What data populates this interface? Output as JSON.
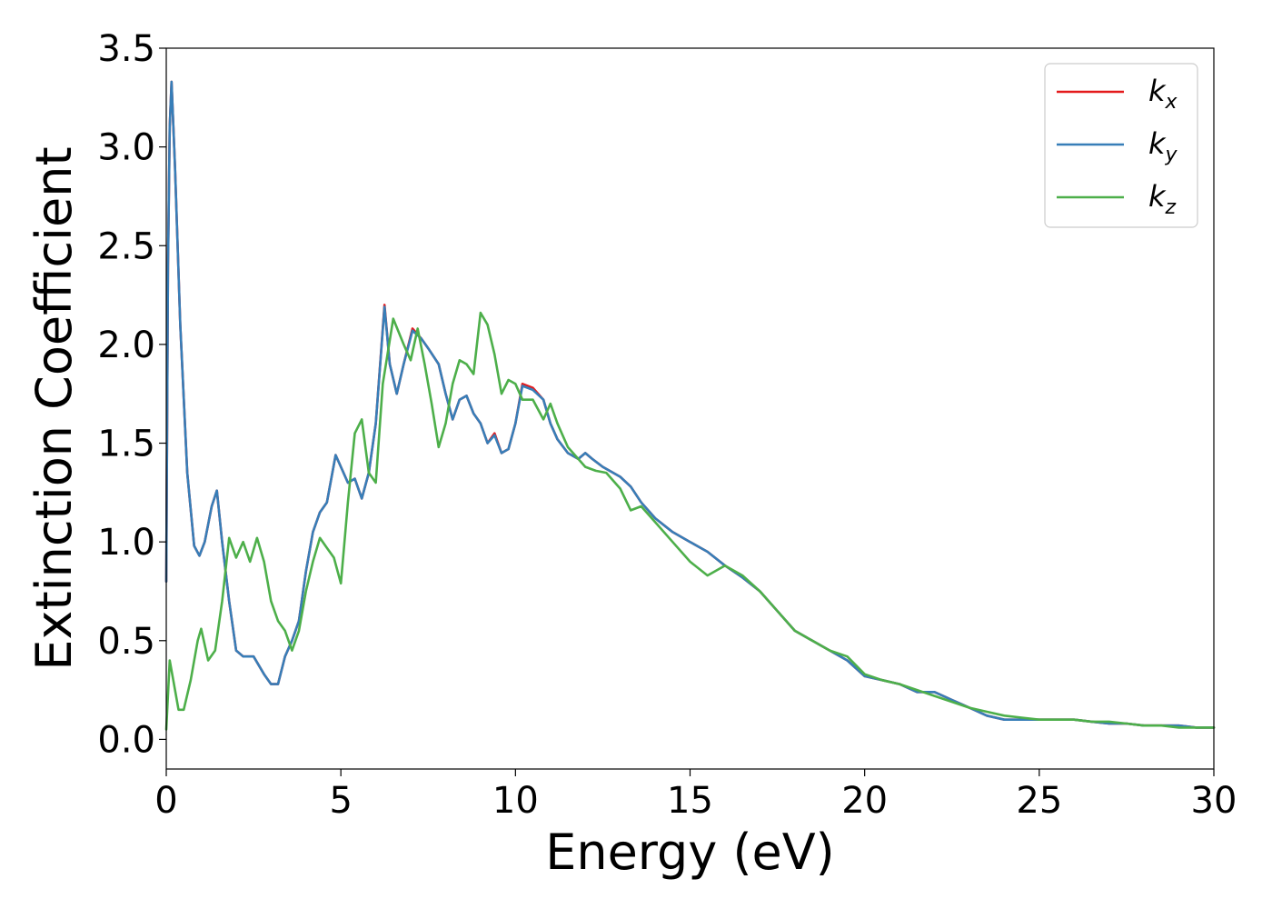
{
  "chart_data": {
    "type": "line",
    "xlabel": "Energy (eV)",
    "ylabel": "Extinction Coefficient",
    "xlim": [
      0,
      30
    ],
    "ylim": [
      -0.15,
      3.5
    ],
    "xticks": [
      0,
      5,
      10,
      15,
      20,
      25,
      30
    ],
    "xtick_labels": [
      "0",
      "5",
      "10",
      "15",
      "20",
      "25",
      "30"
    ],
    "yticks": [
      0.0,
      0.5,
      1.0,
      1.5,
      2.0,
      2.5,
      3.0,
      3.5
    ],
    "ytick_labels": [
      "0.0",
      "0.5",
      "1.0",
      "1.5",
      "2.0",
      "2.5",
      "3.0",
      "3.5"
    ],
    "grid": false,
    "legend_position": "top-right",
    "series": [
      {
        "name_main": "k",
        "name_sub": "x",
        "color": "#e41a1c",
        "x": [
          0,
          0.05,
          0.1,
          0.15,
          0.25,
          0.4,
          0.6,
          0.8,
          0.95,
          1.1,
          1.3,
          1.45,
          1.6,
          1.8,
          2.0,
          2.2,
          2.5,
          2.8,
          3.0,
          3.2,
          3.4,
          3.6,
          3.8,
          4.0,
          4.2,
          4.4,
          4.6,
          4.85,
          5.0,
          5.2,
          5.4,
          5.6,
          5.8,
          6.0,
          6.25,
          6.4,
          6.6,
          6.8,
          7.05,
          7.3,
          7.5,
          7.8,
          8.0,
          8.2,
          8.4,
          8.6,
          8.8,
          9.0,
          9.2,
          9.4,
          9.6,
          9.8,
          10.0,
          10.2,
          10.5,
          10.8,
          11.0,
          11.2,
          11.5,
          11.8,
          12.0,
          12.2,
          12.5,
          12.8,
          13.0,
          13.3,
          13.6,
          14.0,
          14.5,
          15.0,
          15.5,
          16.0,
          16.5,
          17.0,
          17.5,
          18.0,
          18.5,
          19.0,
          19.5,
          20.0,
          20.5,
          21.0,
          21.5,
          22.0,
          22.5,
          23.0,
          23.5,
          24.0,
          24.5,
          25.0,
          25.5,
          26.0,
          26.5,
          27.0,
          27.5,
          28.0,
          28.5,
          29.0,
          29.5,
          30.0
        ],
        "y": [
          0.8,
          2.4,
          3.1,
          3.33,
          2.9,
          2.1,
          1.35,
          0.98,
          0.93,
          1.0,
          1.18,
          1.26,
          1.0,
          0.7,
          0.45,
          0.42,
          0.42,
          0.33,
          0.28,
          0.28,
          0.42,
          0.5,
          0.6,
          0.85,
          1.05,
          1.15,
          1.2,
          1.44,
          1.38,
          1.3,
          1.32,
          1.22,
          1.35,
          1.6,
          2.2,
          1.9,
          1.75,
          1.9,
          2.08,
          2.03,
          1.98,
          1.9,
          1.75,
          1.62,
          1.72,
          1.74,
          1.65,
          1.6,
          1.5,
          1.55,
          1.45,
          1.47,
          1.6,
          1.8,
          1.78,
          1.72,
          1.6,
          1.52,
          1.45,
          1.42,
          1.45,
          1.42,
          1.38,
          1.35,
          1.33,
          1.28,
          1.2,
          1.12,
          1.05,
          1.0,
          0.95,
          0.88,
          0.82,
          0.75,
          0.65,
          0.55,
          0.5,
          0.45,
          0.4,
          0.32,
          0.3,
          0.28,
          0.24,
          0.24,
          0.2,
          0.16,
          0.12,
          0.1,
          0.1,
          0.1,
          0.1,
          0.1,
          0.09,
          0.08,
          0.08,
          0.07,
          0.07,
          0.07,
          0.06,
          0.06
        ]
      },
      {
        "name_main": "k",
        "name_sub": "y",
        "color": "#377eb8",
        "x": [
          0,
          0.05,
          0.1,
          0.15,
          0.25,
          0.4,
          0.6,
          0.8,
          0.95,
          1.1,
          1.3,
          1.45,
          1.6,
          1.8,
          2.0,
          2.2,
          2.5,
          2.8,
          3.0,
          3.2,
          3.4,
          3.6,
          3.8,
          4.0,
          4.2,
          4.4,
          4.6,
          4.85,
          5.0,
          5.2,
          5.4,
          5.6,
          5.8,
          6.0,
          6.25,
          6.4,
          6.6,
          6.8,
          7.05,
          7.3,
          7.5,
          7.8,
          8.0,
          8.2,
          8.4,
          8.6,
          8.8,
          9.0,
          9.2,
          9.4,
          9.6,
          9.8,
          10.0,
          10.2,
          10.5,
          10.8,
          11.0,
          11.2,
          11.5,
          11.8,
          12.0,
          12.2,
          12.5,
          12.8,
          13.0,
          13.3,
          13.6,
          14.0,
          14.5,
          15.0,
          15.5,
          16.0,
          16.5,
          17.0,
          17.5,
          18.0,
          18.5,
          19.0,
          19.5,
          20.0,
          20.5,
          21.0,
          21.5,
          22.0,
          22.5,
          23.0,
          23.5,
          24.0,
          24.5,
          25.0,
          25.5,
          26.0,
          26.5,
          27.0,
          27.5,
          28.0,
          28.5,
          29.0,
          29.5,
          30.0
        ],
        "y": [
          0.8,
          2.4,
          3.1,
          3.33,
          2.9,
          2.1,
          1.35,
          0.98,
          0.93,
          1.0,
          1.18,
          1.26,
          1.0,
          0.7,
          0.45,
          0.42,
          0.42,
          0.33,
          0.28,
          0.28,
          0.42,
          0.5,
          0.6,
          0.85,
          1.05,
          1.15,
          1.2,
          1.44,
          1.38,
          1.3,
          1.32,
          1.22,
          1.35,
          1.6,
          2.19,
          1.9,
          1.75,
          1.9,
          2.07,
          2.03,
          1.98,
          1.9,
          1.75,
          1.62,
          1.72,
          1.74,
          1.65,
          1.6,
          1.5,
          1.54,
          1.45,
          1.47,
          1.6,
          1.79,
          1.77,
          1.72,
          1.6,
          1.52,
          1.45,
          1.42,
          1.45,
          1.42,
          1.38,
          1.35,
          1.33,
          1.28,
          1.2,
          1.12,
          1.05,
          1.0,
          0.95,
          0.88,
          0.82,
          0.75,
          0.65,
          0.55,
          0.5,
          0.45,
          0.4,
          0.32,
          0.3,
          0.28,
          0.24,
          0.24,
          0.2,
          0.16,
          0.12,
          0.1,
          0.1,
          0.1,
          0.1,
          0.1,
          0.09,
          0.08,
          0.08,
          0.07,
          0.07,
          0.07,
          0.06,
          0.06
        ]
      },
      {
        "name_main": "k",
        "name_sub": "z",
        "color": "#4daf4a",
        "x": [
          0,
          0.1,
          0.2,
          0.35,
          0.5,
          0.7,
          0.9,
          1.0,
          1.2,
          1.4,
          1.6,
          1.8,
          2.0,
          2.2,
          2.4,
          2.6,
          2.8,
          3.0,
          3.2,
          3.4,
          3.6,
          3.8,
          4.0,
          4.2,
          4.4,
          4.6,
          4.8,
          5.0,
          5.2,
          5.4,
          5.6,
          5.8,
          6.0,
          6.2,
          6.5,
          6.8,
          7.0,
          7.2,
          7.4,
          7.6,
          7.8,
          8.0,
          8.2,
          8.4,
          8.6,
          8.8,
          9.0,
          9.2,
          9.4,
          9.6,
          9.8,
          10.0,
          10.2,
          10.5,
          10.8,
          11.0,
          11.2,
          11.5,
          11.8,
          12.0,
          12.3,
          12.6,
          13.0,
          13.3,
          13.6,
          14.0,
          14.5,
          15.0,
          15.5,
          16.0,
          16.5,
          17.0,
          17.5,
          18.0,
          18.5,
          19.0,
          19.5,
          20.0,
          20.5,
          21.0,
          21.5,
          22.0,
          22.5,
          23.0,
          23.5,
          24.0,
          24.5,
          25.0,
          25.5,
          26.0,
          26.5,
          27.0,
          27.5,
          28.0,
          28.5,
          29.0,
          29.5,
          30.0
        ],
        "y": [
          0.05,
          0.4,
          0.3,
          0.15,
          0.15,
          0.3,
          0.5,
          0.56,
          0.4,
          0.45,
          0.7,
          1.02,
          0.92,
          1.0,
          0.9,
          1.02,
          0.9,
          0.7,
          0.6,
          0.55,
          0.45,
          0.55,
          0.75,
          0.9,
          1.02,
          0.97,
          0.92,
          0.79,
          1.2,
          1.55,
          1.62,
          1.35,
          1.3,
          1.8,
          2.13,
          2.0,
          1.92,
          2.08,
          1.9,
          1.7,
          1.48,
          1.6,
          1.8,
          1.92,
          1.9,
          1.85,
          2.16,
          2.1,
          1.95,
          1.75,
          1.82,
          1.8,
          1.72,
          1.72,
          1.62,
          1.7,
          1.6,
          1.48,
          1.42,
          1.38,
          1.36,
          1.35,
          1.27,
          1.16,
          1.18,
          1.1,
          1.0,
          0.9,
          0.83,
          0.88,
          0.83,
          0.75,
          0.65,
          0.55,
          0.5,
          0.45,
          0.42,
          0.33,
          0.3,
          0.28,
          0.25,
          0.22,
          0.19,
          0.16,
          0.14,
          0.12,
          0.11,
          0.1,
          0.1,
          0.1,
          0.09,
          0.09,
          0.08,
          0.07,
          0.07,
          0.06,
          0.06,
          0.06
        ]
      }
    ]
  }
}
